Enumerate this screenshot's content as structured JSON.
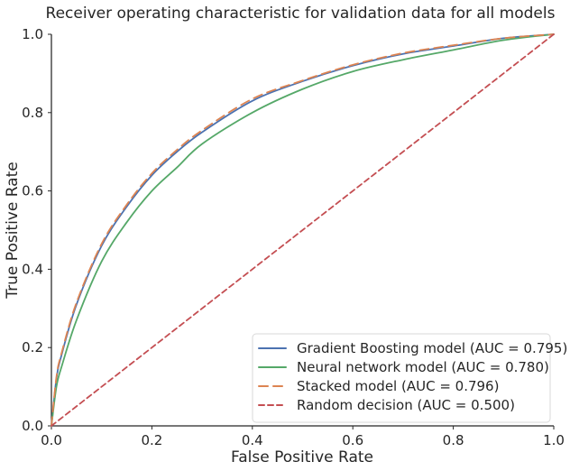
{
  "chart_data": {
    "type": "line",
    "title": "Receiver operating characteristic for validation data for all models",
    "xlabel": "False Positive Rate",
    "ylabel": "True Positive Rate",
    "xlim": [
      0.0,
      1.0
    ],
    "ylim": [
      0.0,
      1.0
    ],
    "x_ticks": [
      "0.0",
      "0.2",
      "0.4",
      "0.6",
      "0.8",
      "1.0"
    ],
    "y_ticks": [
      "0.0",
      "0.2",
      "0.4",
      "0.6",
      "0.8",
      "1.0"
    ],
    "grid": false,
    "legend_position": "bottom-right",
    "series": [
      {
        "name": "Gradient Boosting model (AUC = 0.795)",
        "color": "#4c72b0",
        "dash": "solid",
        "x": [
          0.0,
          0.01,
          0.02,
          0.05,
          0.1,
          0.15,
          0.2,
          0.25,
          0.3,
          0.4,
          0.5,
          0.6,
          0.7,
          0.8,
          0.9,
          1.0
        ],
        "y": [
          0.0,
          0.12,
          0.18,
          0.31,
          0.46,
          0.56,
          0.64,
          0.7,
          0.75,
          0.83,
          0.88,
          0.92,
          0.95,
          0.97,
          0.99,
          1.0
        ]
      },
      {
        "name": "Neural network model (AUC = 0.780)",
        "color": "#55a868",
        "dash": "solid",
        "x": [
          0.0,
          0.01,
          0.02,
          0.05,
          0.1,
          0.15,
          0.2,
          0.25,
          0.3,
          0.4,
          0.5,
          0.6,
          0.7,
          0.8,
          0.9,
          1.0
        ],
        "y": [
          0.0,
          0.1,
          0.15,
          0.27,
          0.42,
          0.52,
          0.6,
          0.66,
          0.72,
          0.8,
          0.86,
          0.905,
          0.935,
          0.96,
          0.985,
          1.0
        ]
      },
      {
        "name": "Stacked model (AUC = 0.796)",
        "color": "#dd8452",
        "dash": "long-dash",
        "x": [
          0.0,
          0.01,
          0.02,
          0.05,
          0.1,
          0.15,
          0.2,
          0.25,
          0.3,
          0.4,
          0.5,
          0.6,
          0.7,
          0.8,
          0.9,
          1.0
        ],
        "y": [
          0.0,
          0.125,
          0.185,
          0.315,
          0.465,
          0.565,
          0.645,
          0.705,
          0.755,
          0.835,
          0.882,
          0.922,
          0.952,
          0.972,
          0.99,
          1.0
        ]
      },
      {
        "name": "Random decision (AUC = 0.500)",
        "color": "#c44e52",
        "dash": "dashed",
        "x": [
          0.0,
          1.0
        ],
        "y": [
          0.0,
          1.0
        ]
      }
    ]
  }
}
